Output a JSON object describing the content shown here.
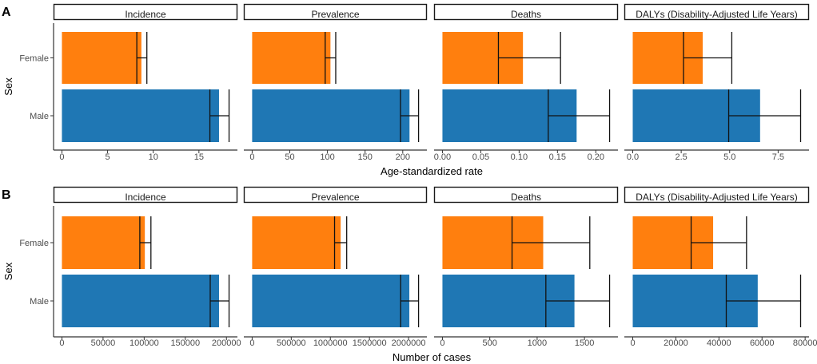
{
  "chart_data": [
    {
      "type": "bar",
      "orientation": "horizontal",
      "tag": "A",
      "xlabel": "Age-standardized rate",
      "ylabel": "Sex",
      "categories": [
        "Female",
        "Male"
      ],
      "colors": {
        "Female": "#ff7f0e",
        "Male": "#1f77b4"
      },
      "facets": [
        {
          "title": "Incidence",
          "values": [
            8.7,
            17.2
          ],
          "error_low": [
            8.2,
            16.2
          ],
          "error_high": [
            9.3,
            18.3
          ],
          "ticks": [
            0,
            5,
            10,
            15
          ],
          "tick_labels": [
            "0",
            "5",
            "10",
            "15"
          ]
        },
        {
          "title": "Prevalence",
          "values": [
            104,
            209
          ],
          "error_low": [
            97,
            197
          ],
          "error_high": [
            111,
            221
          ],
          "ticks": [
            0,
            50,
            100,
            150,
            200
          ],
          "tick_labels": [
            "0",
            "50",
            "100",
            "150",
            "200"
          ]
        },
        {
          "title": "Deaths",
          "values": [
            0.105,
            0.175
          ],
          "error_low": [
            0.073,
            0.138
          ],
          "error_high": [
            0.154,
            0.218
          ],
          "ticks": [
            0,
            0.05,
            0.1,
            0.15,
            0.2
          ],
          "tick_labels": [
            "0.00",
            "0.05",
            "0.10",
            "0.15",
            "0.20"
          ]
        },
        {
          "title": "DALYs (Disability-Adjusted Life Years)",
          "values": [
            3.61,
            6.57
          ],
          "error_low": [
            2.62,
            4.95
          ],
          "error_high": [
            5.11,
            8.66
          ],
          "ticks": [
            0,
            2.5,
            5,
            7.5
          ],
          "tick_labels": [
            "0.0",
            "2.5",
            "5.0",
            "7.5"
          ]
        }
      ]
    },
    {
      "type": "bar",
      "orientation": "horizontal",
      "tag": "B",
      "xlabel": "Number of cases",
      "ylabel": "Sex",
      "categories": [
        "Female",
        "Male"
      ],
      "colors": {
        "Female": "#ff7f0e",
        "Male": "#1f77b4"
      },
      "facets": [
        {
          "title": "Incidence",
          "values": [
            100800,
            191000
          ],
          "error_low": [
            94700,
            180300
          ],
          "error_high": [
            108200,
            203200
          ],
          "ticks": [
            0,
            50000,
            100000,
            150000,
            200000
          ],
          "tick_labels": [
            "0",
            "50000",
            "100000",
            "150000",
            "200000"
          ]
        },
        {
          "title": "Prevalence",
          "values": [
            1132000,
            2010000
          ],
          "error_low": [
            1054000,
            1899000
          ],
          "error_high": [
            1209000,
            2128000
          ],
          "ticks": [
            0,
            500000,
            1000000,
            1500000,
            2000000
          ],
          "tick_labels": [
            "0",
            "500000",
            "1000000",
            "1500000",
            "2000000"
          ]
        },
        {
          "title": "Deaths",
          "values": [
            1064,
            1394
          ],
          "error_low": [
            735,
            1092
          ],
          "error_high": [
            1556,
            1765
          ],
          "ticks": [
            0,
            500,
            1000,
            1500
          ],
          "tick_labels": [
            "0",
            "500",
            "1000",
            "1500"
          ]
        },
        {
          "title": "DALYs (Disability-Adjusted Life Years)",
          "values": [
            37300,
            58000
          ],
          "error_low": [
            27100,
            43400
          ],
          "error_high": [
            52800,
            77900
          ],
          "ticks": [
            0,
            20000,
            40000,
            60000,
            80000
          ],
          "tick_labels": [
            "0",
            "20000",
            "40000",
            "60000",
            "80000"
          ]
        }
      ]
    }
  ]
}
